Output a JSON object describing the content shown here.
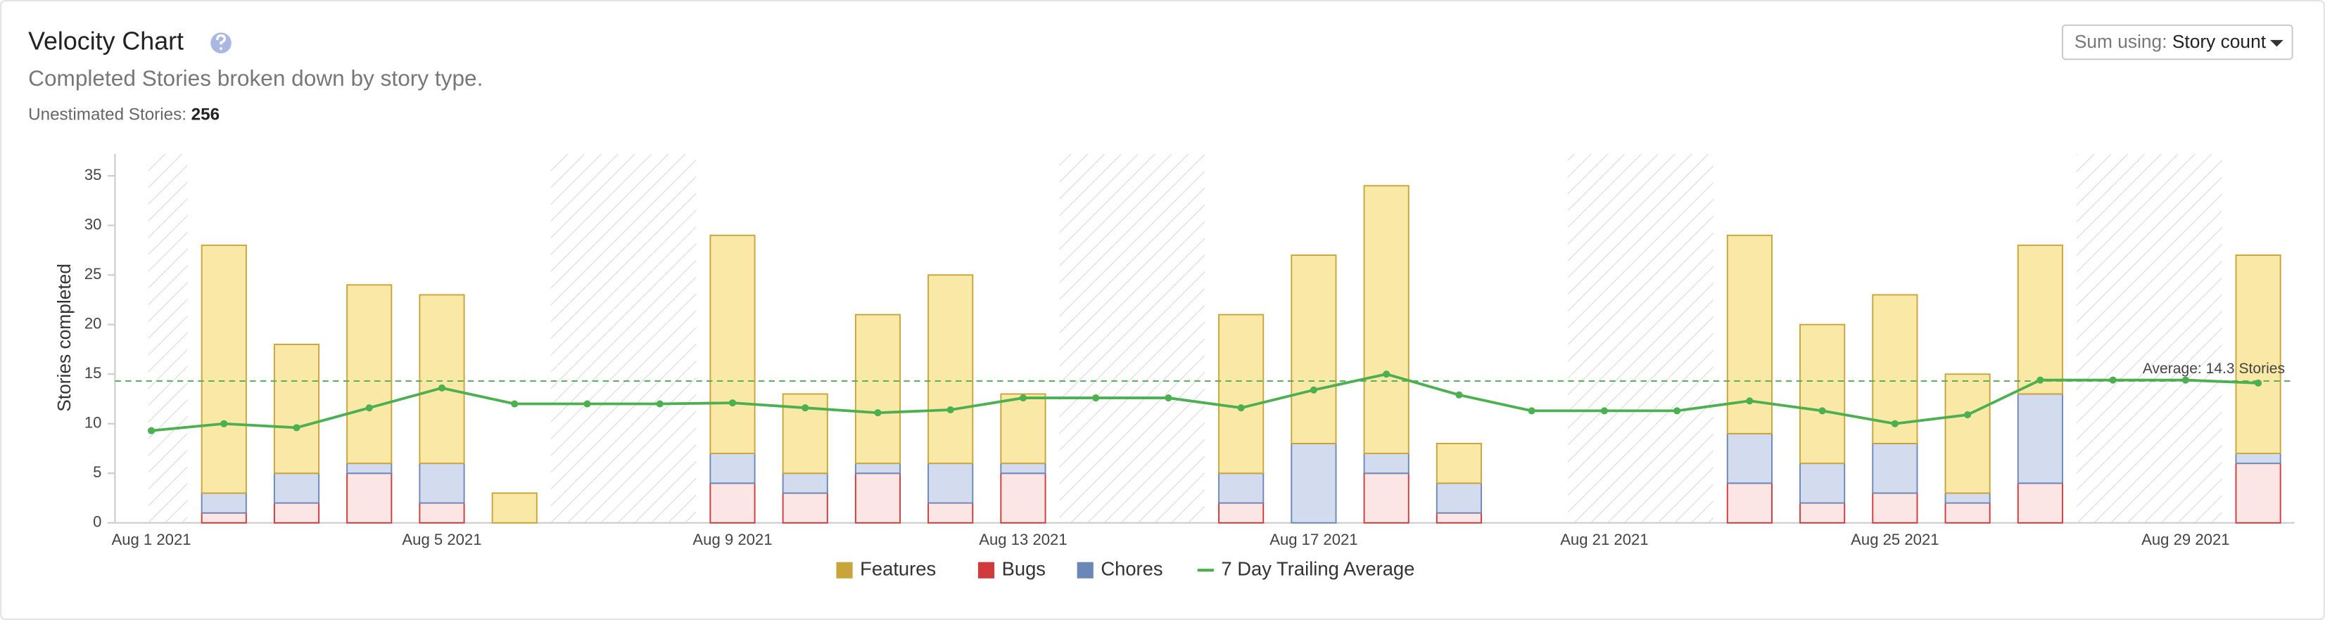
{
  "header": {
    "title": "Velocity Chart",
    "subtitle": "Completed Stories broken down by story type.",
    "unestimated_label": "Unestimated Stories:",
    "unestimated_value": "256",
    "sum_label": "Sum using:",
    "sum_value": "Story count"
  },
  "chart_data": {
    "type": "bar",
    "stacked": true,
    "ylabel": "Stories completed",
    "categories": [
      "Aug 1 2021",
      null,
      null,
      null,
      "Aug 5 2021",
      null,
      null,
      null,
      "Aug 9 2021",
      null,
      null,
      null,
      "Aug 13 2021",
      null,
      null,
      null,
      "Aug 17 2021",
      null,
      null,
      null,
      "Aug 21 2021",
      null,
      null,
      null,
      "Aug 25 2021",
      null,
      null,
      null,
      "Aug 29 2021",
      null
    ],
    "series": [
      {
        "name": "Features",
        "color": "#c9a43a",
        "fill": "#fae8a6",
        "values": [
          0,
          25,
          13,
          18,
          17,
          3,
          0,
          0,
          22,
          8,
          15,
          19,
          7,
          0,
          0,
          16,
          19,
          27,
          4,
          0,
          0,
          0,
          20,
          14,
          15,
          12,
          15,
          0,
          0,
          20
        ]
      },
      {
        "name": "Bugs",
        "color": "#d03a3a",
        "fill": "#fbe5e5",
        "values": [
          0,
          1,
          2,
          5,
          2,
          0,
          0,
          0,
          4,
          3,
          5,
          2,
          5,
          0,
          0,
          2,
          0,
          5,
          1,
          0,
          0,
          0,
          4,
          2,
          3,
          2,
          4,
          0,
          0,
          6
        ]
      },
      {
        "name": "Chores",
        "color": "#6b87b8",
        "fill": "#d3dcef",
        "values": [
          0,
          2,
          3,
          1,
          4,
          0,
          0,
          0,
          3,
          2,
          1,
          4,
          1,
          0,
          0,
          3,
          8,
          2,
          3,
          0,
          0,
          0,
          5,
          4,
          5,
          1,
          9,
          0,
          0,
          1
        ]
      },
      {
        "name": "7 Day Trailing Average",
        "type": "line",
        "color": "#4caf50",
        "values": [
          9.3,
          10,
          9.6,
          11.6,
          13.6,
          12,
          12,
          12,
          12.1,
          11.6,
          11.1,
          11.4,
          12.6,
          12.6,
          12.6,
          11.6,
          13.4,
          15,
          12.9,
          11.3,
          11.3,
          11.3,
          12.3,
          11.3,
          10,
          10.9,
          14.4,
          14.4,
          14.4,
          14.1
        ]
      }
    ],
    "average": 14.3,
    "average_label": "Average: 14.3 Stories",
    "ylim": [
      0,
      37.2
    ],
    "yticks": [
      0,
      5,
      10,
      15,
      20,
      25,
      30,
      35
    ],
    "legend": "bottom",
    "grid": false
  }
}
